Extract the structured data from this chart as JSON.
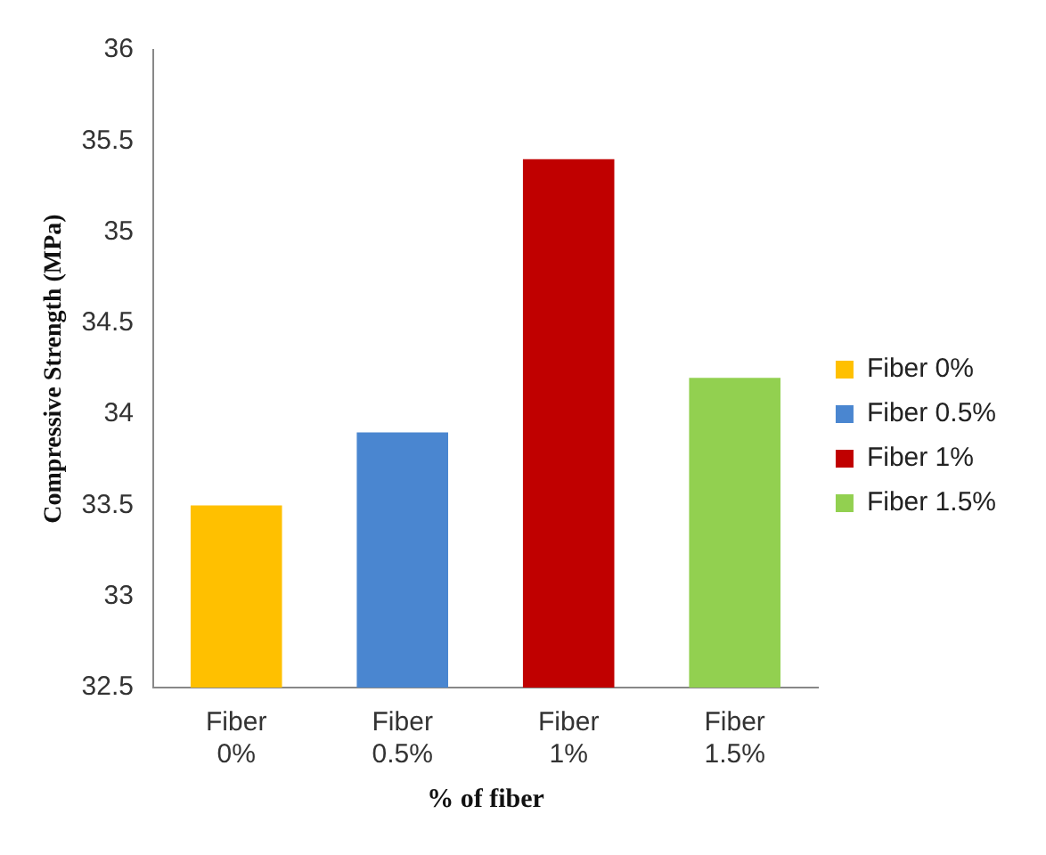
{
  "chart_data": {
    "type": "bar",
    "xlabel": "% of fiber",
    "ylabel": "Compressive Strength (MPa)",
    "categories": [
      "Fiber 0%",
      "Fiber 0.5%",
      "Fiber 1%",
      "Fiber 1.5%"
    ],
    "series": [
      {
        "name": "Fiber 0%",
        "color": "#ffc000",
        "values": [
          33.5,
          null,
          null,
          null
        ]
      },
      {
        "name": "Fiber 0.5%",
        "color": "#4a86d0",
        "values": [
          null,
          33.9,
          null,
          null
        ]
      },
      {
        "name": "Fiber 1%",
        "color": "#c00000",
        "values": [
          null,
          null,
          35.4,
          null
        ]
      },
      {
        "name": "Fiber 1.5%",
        "color": "#92d050",
        "values": [
          null,
          null,
          null,
          34.2
        ]
      }
    ],
    "ylim": [
      32.5,
      36
    ],
    "yticks": [
      32.5,
      33,
      33.5,
      34,
      34.5,
      35,
      35.5,
      36
    ],
    "grid": false,
    "legend": "right"
  }
}
